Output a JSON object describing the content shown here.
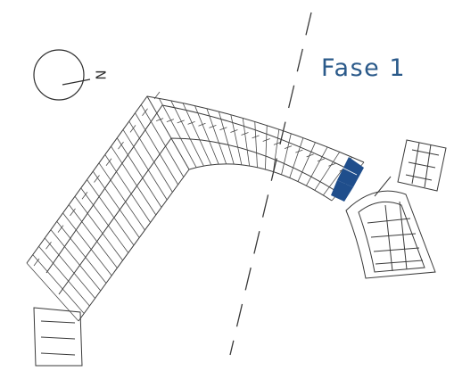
{
  "phase_label": "Fase 1",
  "north_symbol": {
    "icon": "north-arrow-icon",
    "letter": "N"
  },
  "colors": {
    "linework": "#3a3a3a",
    "highlight": "#1f4e8c",
    "label": "#2b5a8a",
    "phase_line": "#3a3a3a"
  }
}
